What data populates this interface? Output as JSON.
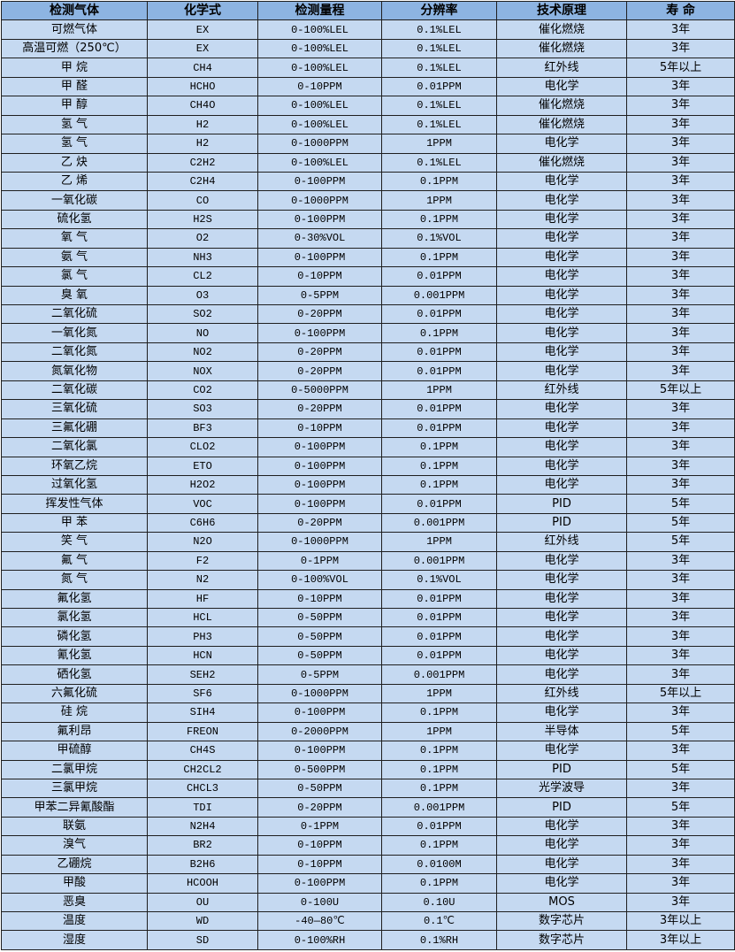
{
  "table": {
    "headers": [
      "检测气体",
      "化学式",
      "检测量程",
      "分辨率",
      "技术原理",
      "寿 命"
    ],
    "rows": [
      [
        "可燃气体",
        "EX",
        "0-100%LEL",
        "0.1%LEL",
        "催化燃烧",
        "3年"
      ],
      [
        "高温可燃（250℃）",
        "EX",
        "0-100%LEL",
        "0.1%LEL",
        "催化燃烧",
        "3年"
      ],
      [
        "甲 烷",
        "CH4",
        "0-100%LEL",
        "0.1%LEL",
        "红外线",
        "5年以上"
      ],
      [
        "甲 醛",
        "HCHO",
        "0-10PPM",
        "0.01PPM",
        "电化学",
        "3年"
      ],
      [
        "甲 醇",
        "CH4O",
        "0-100%LEL",
        "0.1%LEL",
        "催化燃烧",
        "3年"
      ],
      [
        "氢 气",
        "H2",
        "0-100%LEL",
        "0.1%LEL",
        "催化燃烧",
        "3年"
      ],
      [
        "氢 气",
        "H2",
        "0-1000PPM",
        "1PPM",
        "电化学",
        "3年"
      ],
      [
        "乙 炔",
        "C2H2",
        "0-100%LEL",
        "0.1%LEL",
        "催化燃烧",
        "3年"
      ],
      [
        "乙 烯",
        "C2H4",
        "0-100PPM",
        "0.1PPM",
        "电化学",
        "3年"
      ],
      [
        "一氧化碳",
        "CO",
        "0-1000PPM",
        "1PPM",
        "电化学",
        "3年"
      ],
      [
        "硫化氢",
        "H2S",
        "0-100PPM",
        "0.1PPM",
        "电化学",
        "3年"
      ],
      [
        "氧 气",
        "O2",
        "0-30%VOL",
        "0.1%VOL",
        "电化学",
        "3年"
      ],
      [
        "氨 气",
        "NH3",
        "0-100PPM",
        "0.1PPM",
        "电化学",
        "3年"
      ],
      [
        "氯 气",
        "CL2",
        "0-10PPM",
        "0.01PPM",
        "电化学",
        "3年"
      ],
      [
        "臭 氧",
        "O3",
        "0-5PPM",
        "0.001PPM",
        "电化学",
        "3年"
      ],
      [
        "二氧化硫",
        "SO2",
        "0-20PPM",
        "0.01PPM",
        "电化学",
        "3年"
      ],
      [
        "一氧化氮",
        "NO",
        "0-100PPM",
        "0.1PPM",
        "电化学",
        "3年"
      ],
      [
        "二氧化氮",
        "NO2",
        "0-20PPM",
        "0.01PPM",
        "电化学",
        "3年"
      ],
      [
        "氮氧化物",
        "NOX",
        "0-20PPM",
        "0.01PPM",
        "电化学",
        "3年"
      ],
      [
        "二氧化碳",
        "CO2",
        "0-5000PPM",
        "1PPM",
        "红外线",
        "5年以上"
      ],
      [
        "三氧化硫",
        "SO3",
        "0-20PPM",
        "0.01PPM",
        "电化学",
        "3年"
      ],
      [
        "三氟化硼",
        "BF3",
        "0-10PPM",
        "0.01PPM",
        "电化学",
        "3年"
      ],
      [
        "二氧化氯",
        "CLO2",
        "0-100PPM",
        "0.1PPM",
        "电化学",
        "3年"
      ],
      [
        "环氧乙烷",
        "ETO",
        "0-100PPM",
        "0.1PPM",
        "电化学",
        "3年"
      ],
      [
        "过氧化氢",
        "H2O2",
        "0-100PPM",
        "0.1PPM",
        "电化学",
        "3年"
      ],
      [
        "挥发性气体",
        "VOC",
        "0-100PPM",
        "0.01PPM",
        "PID",
        "5年"
      ],
      [
        "甲 苯",
        "C6H6",
        "0-20PPM",
        "0.001PPM",
        "PID",
        "5年"
      ],
      [
        "笑 气",
        "N2O",
        "0-1000PPM",
        "1PPM",
        "红外线",
        "5年"
      ],
      [
        "氟 气",
        "F2",
        "0-1PPM",
        "0.001PPM",
        "电化学",
        "3年"
      ],
      [
        "氮 气",
        "N2",
        "0-100%VOL",
        "0.1%VOL",
        "电化学",
        "3年"
      ],
      [
        "氟化氢",
        "HF",
        "0-10PPM",
        "0.01PPM",
        "电化学",
        "3年"
      ],
      [
        "氯化氢",
        "HCL",
        "0-50PPM",
        "0.01PPM",
        "电化学",
        "3年"
      ],
      [
        "磷化氢",
        "PH3",
        "0-50PPM",
        "0.01PPM",
        "电化学",
        "3年"
      ],
      [
        "氰化氢",
        "HCN",
        "0-50PPM",
        "0.01PPM",
        "电化学",
        "3年"
      ],
      [
        "硒化氢",
        "SEH2",
        "0-5PPM",
        "0.001PPM",
        "电化学",
        "3年"
      ],
      [
        "六氟化硫",
        "SF6",
        "0-1000PPM",
        "1PPM",
        "红外线",
        "5年以上"
      ],
      [
        "硅 烷",
        "SIH4",
        "0-100PPM",
        "0.1PPM",
        "电化学",
        "3年"
      ],
      [
        "氟利昂",
        "FREON",
        "0-2000PPM",
        "1PPM",
        "半导体",
        "5年"
      ],
      [
        "甲硫醇",
        "CH4S",
        "0-100PPM",
        "0.1PPM",
        "电化学",
        "3年"
      ],
      [
        "二氯甲烷",
        "CH2CL2",
        "0-500PPM",
        "0.1PPM",
        "PID",
        "5年"
      ],
      [
        "三氯甲烷",
        "CHCL3",
        "0-50PPM",
        "0.1PPM",
        "光学波导",
        "3年"
      ],
      [
        "甲苯二异氰酸酯",
        "TDI",
        "0-20PPM",
        "0.001PPM",
        "PID",
        "5年"
      ],
      [
        "联氨",
        "N2H4",
        "0-1PPM",
        "0.01PPM",
        "电化学",
        "3年"
      ],
      [
        "溴气",
        "BR2",
        "0-10PPM",
        "0.1PPM",
        "电化学",
        "3年"
      ],
      [
        "乙硼烷",
        "B2H6",
        "0-10PPM",
        "0.0100M",
        "电化学",
        "3年"
      ],
      [
        "甲酸",
        "HCOOH",
        "0-100PPM",
        "0.1PPM",
        "电化学",
        "3年"
      ],
      [
        "恶臭",
        "OU",
        "0-100U",
        "0.10U",
        "MOS",
        "3年"
      ],
      [
        "温度",
        "WD",
        "-40—80℃",
        "0.1℃",
        "数字芯片",
        "3年以上"
      ],
      [
        "湿度",
        "SD",
        "0-100%RH",
        "0.1%RH",
        "数字芯片",
        "3年以上"
      ]
    ]
  },
  "colors": {
    "header_bg": "#8db4e2",
    "row_bg": "#c5d9f1",
    "border": "#1f1f1f"
  }
}
